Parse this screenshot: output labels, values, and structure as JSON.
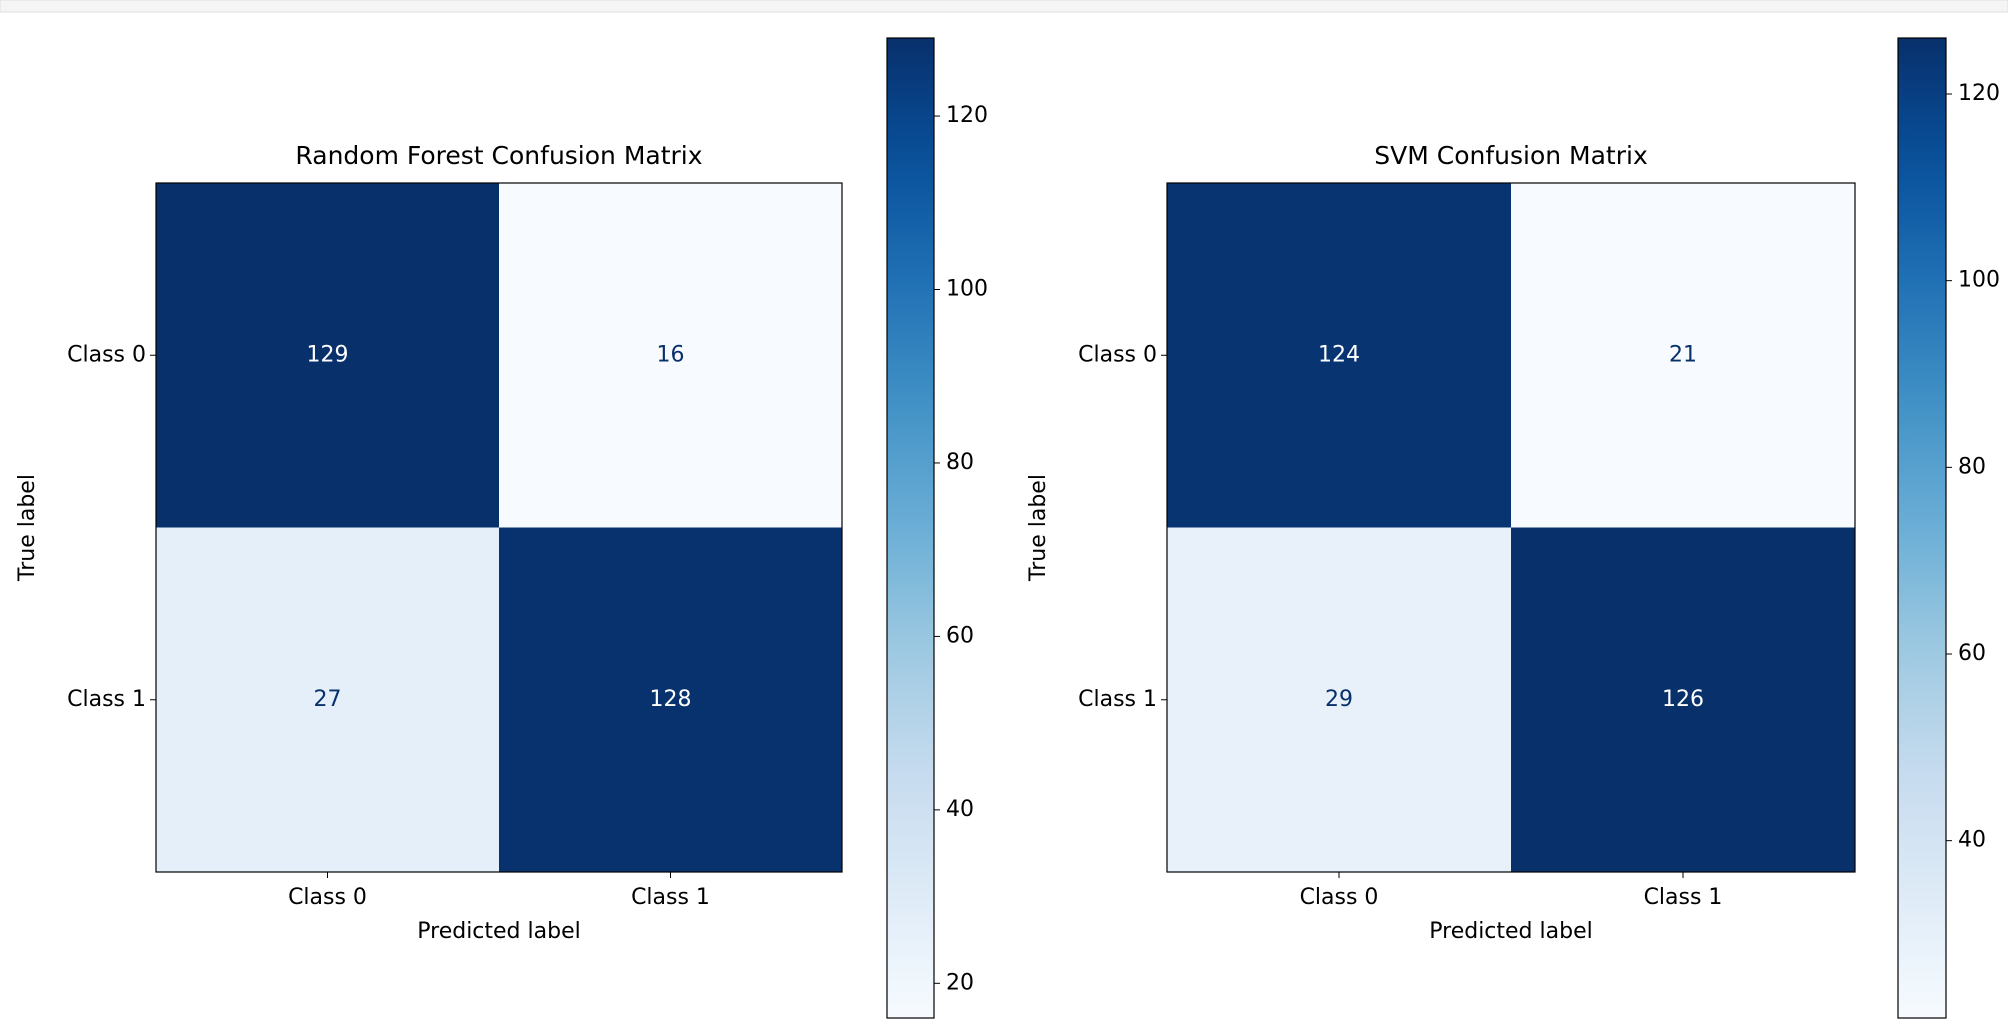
{
  "chart_data": [
    {
      "type": "heatmap",
      "title": "Random Forest Confusion Matrix",
      "xlabel": "Predicted label",
      "ylabel": "True label",
      "x": [
        "Class 0",
        "Class 1"
      ],
      "y": [
        "Class 0",
        "Class 1"
      ],
      "values": [
        [
          129,
          16
        ],
        [
          27,
          128
        ]
      ],
      "cmap": "Blues",
      "clim": [
        16,
        129
      ],
      "cticks": [
        20,
        40,
        60,
        80,
        100,
        120
      ]
    },
    {
      "type": "heatmap",
      "title": "SVM Confusion Matrix",
      "xlabel": "Predicted label",
      "ylabel": "True label",
      "x": [
        "Class 0",
        "Class 1"
      ],
      "y": [
        "Class 0",
        "Class 1"
      ],
      "values": [
        [
          124,
          21
        ],
        [
          29,
          126
        ]
      ],
      "cmap": "Blues",
      "clim": [
        21,
        126
      ],
      "cticks": [
        40,
        60,
        80,
        100,
        120
      ]
    }
  ]
}
